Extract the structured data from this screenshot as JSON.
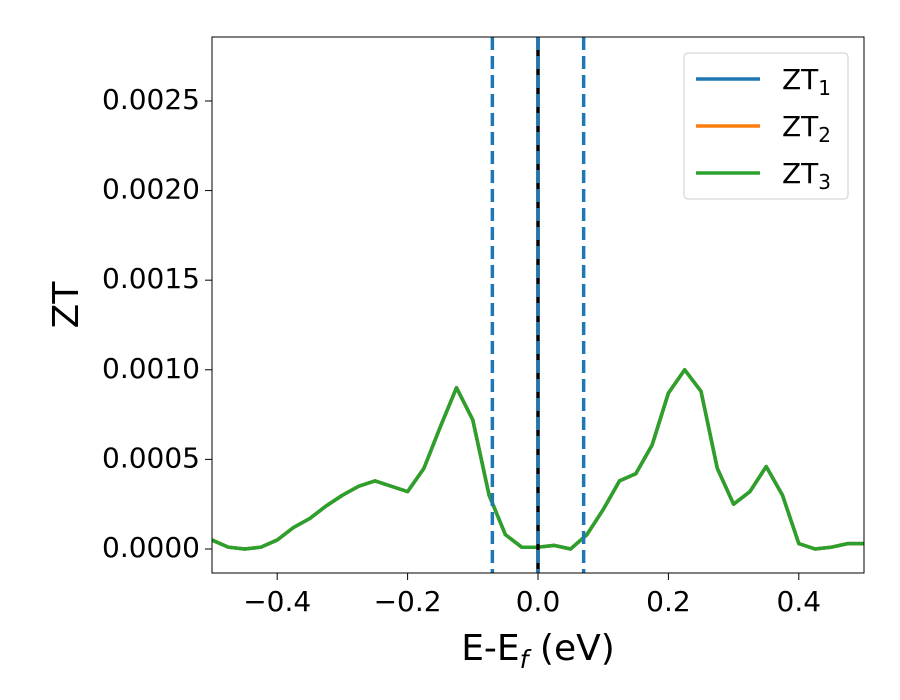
{
  "chart_data": {
    "type": "line",
    "xlabel": {
      "text": "E-E",
      "sub": "f",
      "rest": " (eV)"
    },
    "ylabel": "ZT",
    "xlim": [
      -0.5,
      0.5
    ],
    "ylim": [
      -0.000134,
      0.002857
    ],
    "xticks": [
      {
        "value": -0.4,
        "label": "−0.4"
      },
      {
        "value": -0.2,
        "label": "−0.2"
      },
      {
        "value": 0,
        "label": "0.0"
      },
      0.2,
      0.4
    ],
    "yticks": [
      {
        "value": 0,
        "label": "0.0000"
      },
      {
        "value": 0.0005,
        "label": "0.0005"
      },
      {
        "value": 0.001,
        "label": "0.0010"
      },
      {
        "value": 0.0015,
        "label": "0.0015"
      },
      {
        "value": 0.002,
        "label": "0.0020"
      },
      {
        "value": 0.0025,
        "label": "0.0025"
      }
    ],
    "legend": "upper right",
    "x": [
      -0.5,
      -0.475,
      -0.45,
      -0.425,
      -0.4,
      -0.375,
      -0.35,
      -0.325,
      -0.3,
      -0.275,
      -0.25,
      -0.225,
      -0.2,
      -0.175,
      -0.15,
      -0.125,
      -0.1,
      -0.075,
      -0.05,
      -0.025,
      0,
      0.025,
      0.05,
      0.075,
      0.1,
      0.125,
      0.15,
      0.175,
      0.2,
      0.225,
      0.25,
      0.275,
      0.3,
      0.325,
      0.35,
      0.375,
      0.4,
      0.425,
      0.45,
      0.475,
      0.5
    ],
    "series": [
      {
        "name": {
          "text": "ZT",
          "sub": "1"
        },
        "color": "#1f77b4",
        "values": [
          5e-05,
          1e-05,
          0,
          1e-05,
          5e-05,
          0.00012,
          0.00017,
          0.00024,
          0.0003,
          0.00035,
          0.00038,
          0.00035,
          0.00032,
          0.00045,
          0.00068,
          0.0009,
          0.00072,
          0.0003,
          8e-05,
          1e-05,
          1e-05,
          2e-05,
          0,
          8e-05,
          0.00022,
          0.00038,
          0.00042,
          0.00058,
          0.00087,
          0.001,
          0.00088,
          0.00045,
          0.00025,
          0.00032,
          0.00046,
          0.0003,
          3e-05,
          0,
          1e-05,
          3e-05,
          3e-05
        ]
      },
      {
        "name": {
          "text": "ZT",
          "sub": "2"
        },
        "color": "#ff7f0e",
        "values": [
          5e-05,
          1e-05,
          0,
          1e-05,
          5e-05,
          0.00012,
          0.00017,
          0.00024,
          0.0003,
          0.00035,
          0.00038,
          0.00035,
          0.00032,
          0.00045,
          0.00068,
          0.0009,
          0.00072,
          0.0003,
          8e-05,
          1e-05,
          1e-05,
          2e-05,
          0,
          8e-05,
          0.00022,
          0.00038,
          0.00042,
          0.00058,
          0.00087,
          0.001,
          0.00088,
          0.00045,
          0.00025,
          0.00032,
          0.00046,
          0.0003,
          3e-05,
          0,
          1e-05,
          3e-05,
          3e-05
        ]
      },
      {
        "name": {
          "text": "ZT",
          "sub": "3"
        },
        "color": "#2ca02c",
        "values": [
          5e-05,
          1e-05,
          0,
          1e-05,
          5e-05,
          0.00012,
          0.00017,
          0.00024,
          0.0003,
          0.00035,
          0.00038,
          0.00035,
          0.00032,
          0.00045,
          0.00068,
          0.0009,
          0.00072,
          0.0003,
          8e-05,
          1e-05,
          1e-05,
          2e-05,
          0,
          8e-05,
          0.00022,
          0.00038,
          0.00042,
          0.00058,
          0.00087,
          0.001,
          0.00088,
          0.00045,
          0.00025,
          0.00032,
          0.00046,
          0.0003,
          3e-05,
          0,
          1e-05,
          3e-05,
          3e-05
        ]
      }
    ],
    "vlines": [
      {
        "x": -0.07,
        "color": "#1f77b4",
        "style": "dashed"
      },
      {
        "x": 0,
        "color": "#000000",
        "style": "solid"
      },
      {
        "x": 0,
        "color": "#1f77b4",
        "style": "dashed"
      },
      {
        "x": 0.07,
        "color": "#1f77b4",
        "style": "dashed"
      }
    ]
  }
}
